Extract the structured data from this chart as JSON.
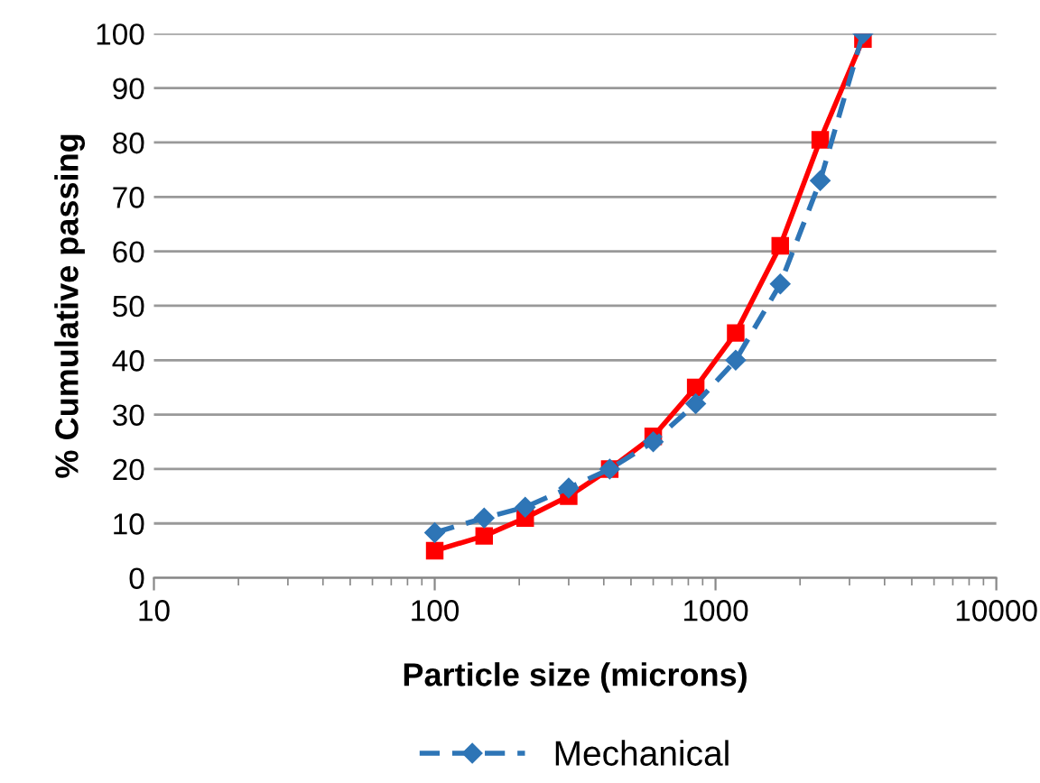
{
  "chart_data": {
    "type": "line",
    "xlabel": "Particle size (microns)",
    "ylabel": "% Cumulative passing",
    "log": "x",
    "xlim": [
      10,
      10000
    ],
    "xticks": [
      10,
      100,
      1000,
      10000
    ],
    "ylim": [
      0,
      100
    ],
    "yticks": [
      0,
      10,
      20,
      30,
      40,
      50,
      60,
      70,
      80,
      90,
      100
    ],
    "grid": "y",
    "legend": "bottom",
    "series": [
      {
        "name": "Mechanical",
        "color": "#2e75b6",
        "marker": "diamond",
        "line_style": "dashed",
        "x": [
          100,
          150,
          210,
          300,
          420,
          600,
          850,
          1180,
          1700,
          2360,
          3350
        ],
        "values": [
          8.3,
          11,
          13,
          16.5,
          20,
          25,
          32,
          40,
          54,
          73,
          100
        ]
      },
      {
        "color": "#ff0000",
        "marker": "square",
        "line_style": "solid",
        "x": [
          100,
          150,
          210,
          300,
          420,
          600,
          850,
          1180,
          1700,
          2360,
          3350
        ],
        "values": [
          5,
          7.7,
          11,
          15,
          20,
          26,
          35,
          45,
          61,
          80.5,
          99
        ]
      }
    ]
  }
}
